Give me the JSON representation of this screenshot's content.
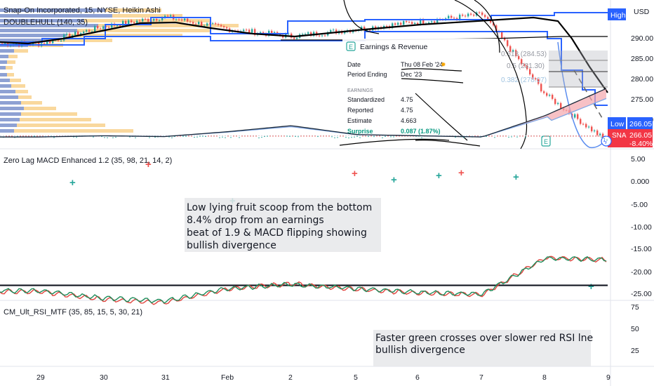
{
  "header": {
    "symbol_line": "Snap-On Incorporated, 15, NYSE, Heikin Ashi",
    "indicator1": "DOUBLEHULL (140, 35)"
  },
  "top_right": {
    "high_label": "High",
    "currency": "USD"
  },
  "price_pane": {
    "ticks": [
      "290.00",
      "285.00",
      "280.00",
      "275.00",
      "270.00"
    ],
    "low_tag": "Low",
    "low_value": "266.05",
    "symbol_tag": "SNA",
    "last_price": "266.05",
    "change": "-8.40%",
    "fib_levels": [
      "0.618 (284.53)",
      "0.5 (281.30)",
      "0.382 (278.07)"
    ],
    "earnings_badge": "E"
  },
  "earnings_popup": {
    "icon": "E",
    "title": "Earnings & Revenue",
    "rows": [
      {
        "k": "Date",
        "v": "Thu 08 Feb '24"
      },
      {
        "k": "Period Ending",
        "v": "Dec '23"
      }
    ],
    "section": "EARNINGS",
    "earnings": [
      {
        "k": "Standardized",
        "v": "4.75"
      },
      {
        "k": "Reported",
        "v": "4.75"
      },
      {
        "k": "Estimate",
        "v": "4.663"
      },
      {
        "k": "Surprise",
        "v": "0.087 (1.87%)"
      }
    ]
  },
  "macd_pane": {
    "title": "Zero Lag MACD Enhanced 1.2 (35, 98, 21, 14, 2)",
    "ticks": [
      "5.00",
      "0.000",
      "-5.00",
      "-10.00",
      "-15.00",
      "-20.00",
      "-25.00"
    ]
  },
  "rsi_pane": {
    "title": "CM_Ult_RSI_MTF (35, 85, 15, 5, 30, 21)",
    "ticks": [
      "75",
      "50",
      "25"
    ]
  },
  "time_axis": [
    "29",
    "30",
    "31",
    "Feb",
    "2",
    "5",
    "6",
    "7",
    "8",
    "9"
  ],
  "notes": {
    "macd_note": [
      "Low lying fruit scoop from the bottom",
      "8.4% drop from  an earnings",
      "beat of 1.9  & MACD flipping showing",
      "bullish divergence"
    ],
    "rsi_note": [
      "Faster green crosses over slower red RSI lne",
      "bullish divergence"
    ]
  },
  "colors": {
    "up": "#26a69a",
    "down": "#ef5350",
    "blue": "#2962ff",
    "hull": "#000000",
    "rsi_red": "#e0453e",
    "rsi_green": "#1e8c5a",
    "macd_fill": "#f4a6ad",
    "badge_red": "#f23645"
  },
  "chart_data": [
    {
      "type": "line",
      "title": "Snap-On Incorporated, 15, NYSE, Heikin Ashi",
      "x": [
        "29",
        "30",
        "31",
        "Feb",
        "2",
        "5",
        "6",
        "7",
        "8",
        "9"
      ],
      "series": [
        {
          "name": "SNA",
          "values": [
            286.5,
            290.0,
            292.0,
            289.5,
            288.0,
            289.5,
            291.0,
            292.5,
            276.0,
            266.05
          ]
        }
      ],
      "ylim": [
        266,
        294
      ],
      "grid": false
    },
    {
      "type": "bar",
      "title": "Zero Lag MACD Enhanced 1.2 (35, 98, 21, 14, 2)",
      "x": [
        "29",
        "30",
        "31",
        "Feb",
        "2",
        "5",
        "6",
        "7",
        "8",
        "9"
      ],
      "series": [
        {
          "name": "MACD",
          "values": [
            0.3,
            0.0,
            0.2,
            -1.0,
            -2.5,
            -0.3,
            0.0,
            0.3,
            -5.0,
            -12.0
          ]
        }
      ],
      "ylim": [
        -27,
        6
      ]
    },
    {
      "type": "line",
      "title": "CM_Ult_RSI_MTF (35, 85, 15, 5, 30, 21)",
      "x": [
        "29",
        "30",
        "31",
        "Feb",
        "2",
        "5",
        "6",
        "7",
        "8",
        "9"
      ],
      "series": [
        {
          "name": "RSI fast",
          "values": [
            58,
            68,
            72,
            55,
            48,
            55,
            60,
            62,
            15,
            18
          ]
        },
        {
          "name": "RSI slow",
          "values": [
            57,
            66,
            70,
            54,
            49,
            54,
            59,
            61,
            16,
            17
          ]
        }
      ],
      "ylim": [
        5,
        78
      ]
    }
  ]
}
